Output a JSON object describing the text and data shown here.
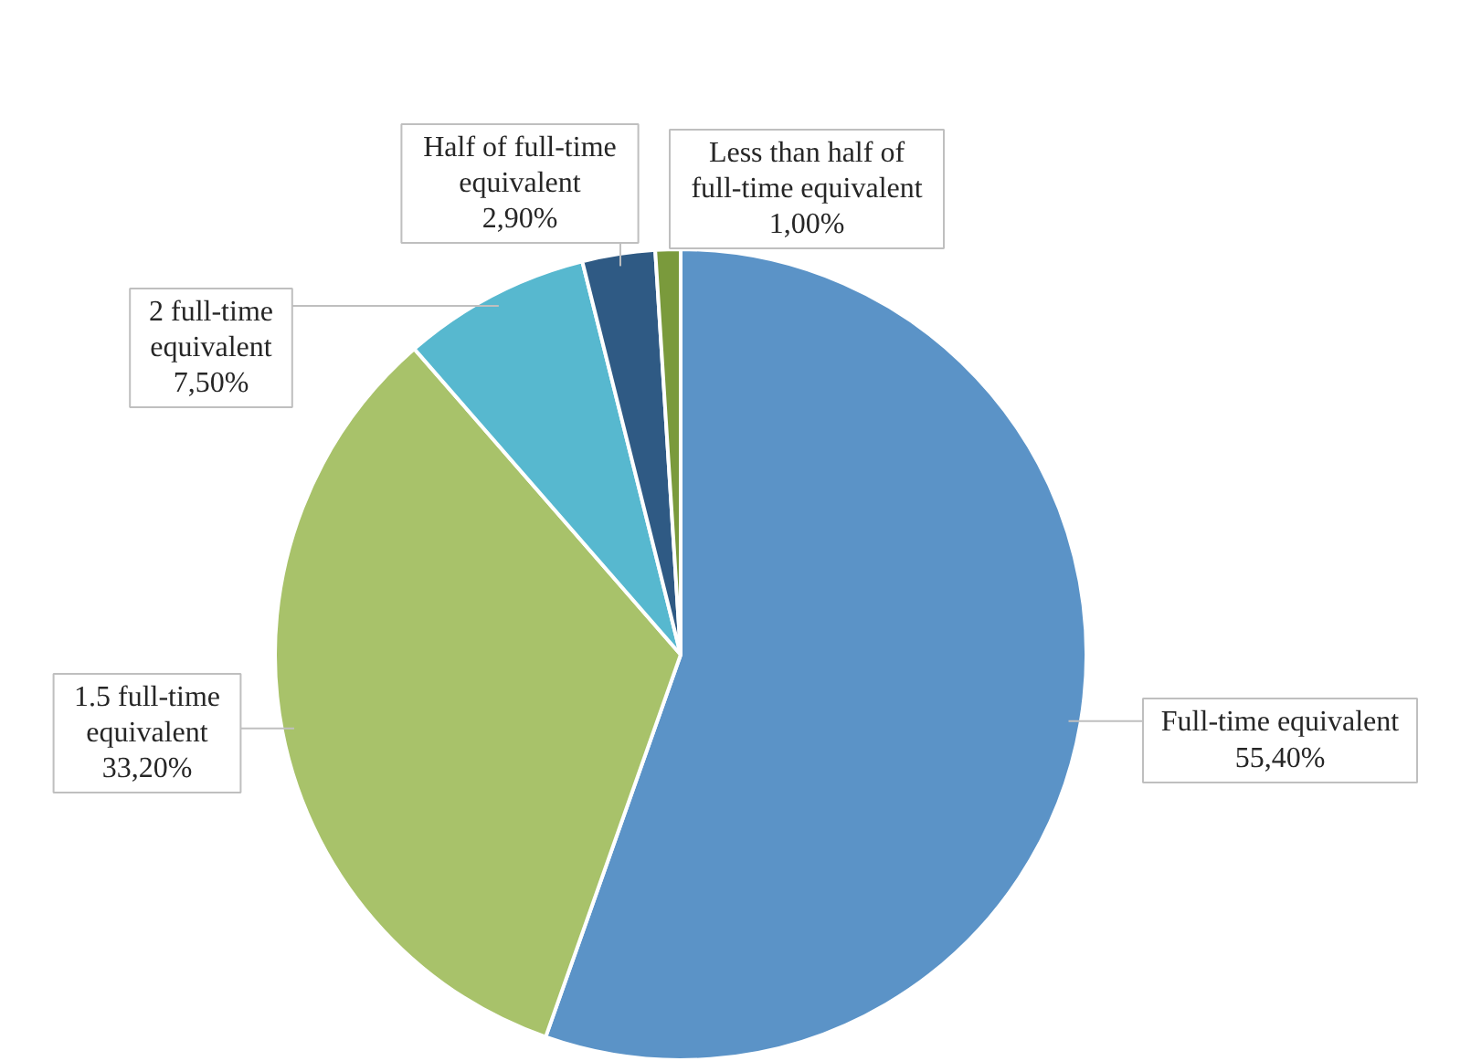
{
  "chart_data": {
    "type": "pie",
    "categories": [
      "Full-time equivalent",
      "1.5 full-time equivalent",
      "2 full-time equivalent",
      "Half of full-time equivalent",
      "Less than half of full-time equivalent"
    ],
    "values": [
      55.4,
      33.2,
      7.5,
      2.9,
      1.0
    ],
    "colors": [
      "#5b93c7",
      "#a8c26a",
      "#57b8cf",
      "#2f5a84",
      "#7a9a3c"
    ],
    "value_labels": [
      "55,40%",
      "33,20%",
      "7,50%",
      "2,90%",
      "1,00%"
    ]
  }
}
